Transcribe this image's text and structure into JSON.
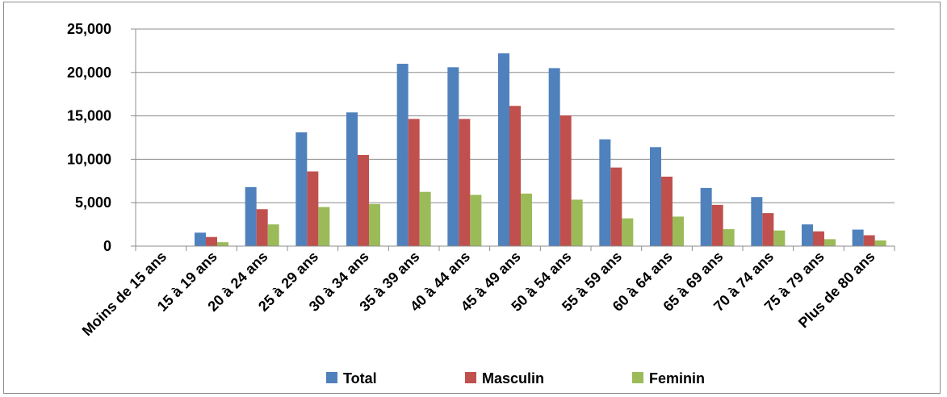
{
  "chart_data": {
    "type": "bar",
    "title": "",
    "xlabel": "",
    "ylabel": "",
    "ylim": [
      0,
      25000
    ],
    "yticks": [
      0,
      5000,
      10000,
      15000,
      20000,
      25000
    ],
    "ytick_labels": [
      "0",
      "5,000",
      "10,000",
      "15,000",
      "20,000",
      "25,000"
    ],
    "grid": true,
    "legend_position": "bottom",
    "categories": [
      "Moins de 15 ans",
      "15 à 19 ans",
      "20 à 24 ans",
      "25 à 29 ans",
      "30 à 34 ans",
      "35 à 39 ans",
      "40 à 44 ans",
      "45 à 49 ans",
      "50 à 54 ans",
      "55 à 59 ans",
      "60 à 64 ans",
      "65 à 69 ans",
      "70 à 74 ans",
      "75 à 79 ans",
      "Plus de 80 ans"
    ],
    "series": [
      {
        "name": "Total",
        "color": "#4f81bd",
        "values": [
          0,
          1550,
          6800,
          13100,
          15400,
          21000,
          20600,
          22200,
          20500,
          12300,
          11400,
          6700,
          5650,
          2500,
          1900
        ]
      },
      {
        "name": "Masculin",
        "color": "#c0504d",
        "values": [
          0,
          1050,
          4250,
          8600,
          10500,
          14650,
          14650,
          16150,
          15050,
          9050,
          8000,
          4750,
          3800,
          1700,
          1250
        ]
      },
      {
        "name": "Feminin",
        "color": "#9bbb59",
        "values": [
          0,
          450,
          2500,
          4500,
          4850,
          6250,
          5900,
          6050,
          5350,
          3200,
          3400,
          1950,
          1800,
          800,
          650
        ]
      }
    ]
  }
}
